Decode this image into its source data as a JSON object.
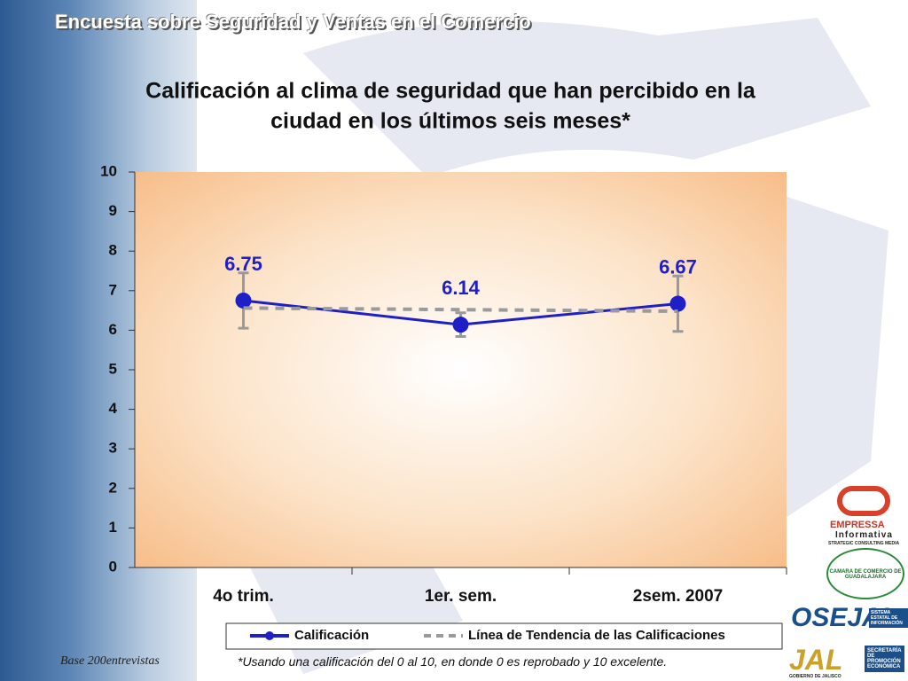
{
  "header": "Encuesta sobre Seguridad y Ventas en el Comercio",
  "chart_data": {
    "type": "line",
    "title": [
      "Calificación al clima de seguridad que han percibido en la",
      "ciudad en los últimos seis meses*"
    ],
    "categories": [
      "4o trim.",
      "1er. sem.",
      "2sem. 2007"
    ],
    "series": [
      {
        "name": "Calificación",
        "color": "#1f1fc8",
        "values": [
          6.75,
          6.14,
          6.67
        ],
        "errors": [
          0.7,
          0.3,
          0.7
        ],
        "error_color": "#9a9a9a"
      },
      {
        "name": "Línea de Tendencia de las Calificaciones",
        "color": "#9a9a9a",
        "values": [
          6.56,
          6.52,
          6.48
        ],
        "dashed": true
      }
    ],
    "ylim": [
      0,
      10
    ],
    "yticks": [
      0,
      1,
      2,
      3,
      4,
      5,
      6,
      7,
      8,
      9,
      10
    ],
    "legend": "bottom"
  },
  "footnote": "*Usando una calificación del 0 al 10, en donde 0 es reprobado y 10 excelente.",
  "base": "Base 200entrevistas",
  "logos": {
    "empressa": "EMPRESSA",
    "informativa": "Informativa",
    "tagline": "STRATEGIC CONSULTING MEDIA",
    "camara": "CAMARA DE COMERCIO DE GUADALAJARA",
    "osejal": "OSEJAL",
    "sei": "SISTEMA ESTATAL DE INFORMACIÓN",
    "jal": "JAL",
    "gobierno": "GOBIERNO DE JALISCO",
    "secretaria": "SECRETARÍA DE PROMOCIÓN ECONÓMICA"
  }
}
